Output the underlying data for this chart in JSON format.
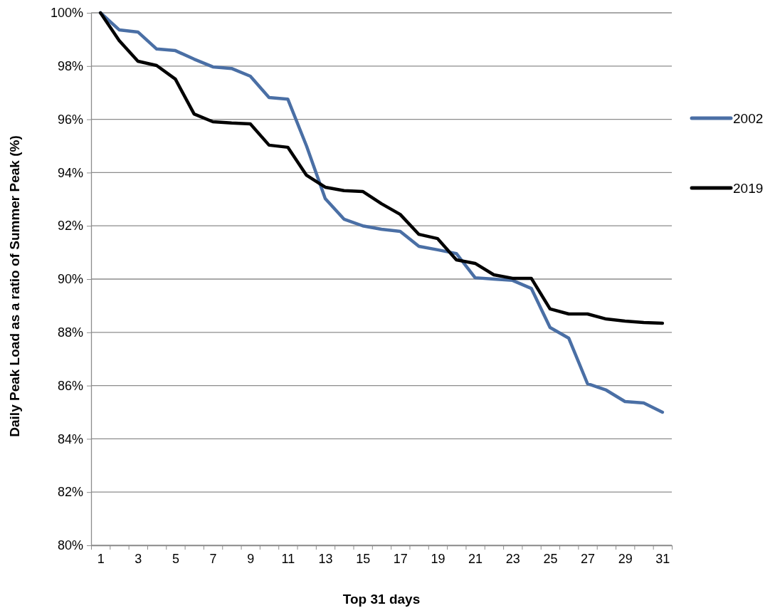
{
  "chart_data": {
    "type": "line",
    "xlabel": "Top 31 days",
    "ylabel": "Daily Peak Load as a ratio of Summer Peak (%)",
    "x": [
      1,
      2,
      3,
      4,
      5,
      6,
      7,
      8,
      9,
      10,
      11,
      12,
      13,
      14,
      15,
      16,
      17,
      18,
      19,
      20,
      21,
      22,
      23,
      24,
      25,
      26,
      27,
      28,
      29,
      30,
      31
    ],
    "xlim": [
      0.5,
      31.5
    ],
    "xticks": [
      1,
      3,
      5,
      7,
      9,
      11,
      13,
      15,
      17,
      19,
      21,
      23,
      25,
      27,
      29,
      31,
      {
        "value": 0.5,
        "label": null
      },
      {
        "value": 1.5,
        "label": null
      },
      {
        "value": 2.5,
        "label": null
      },
      {
        "value": 3.5,
        "label": null
      },
      {
        "value": 4.5,
        "label": null
      },
      {
        "value": 5.5,
        "label": null
      },
      {
        "value": 6.5,
        "label": null
      },
      {
        "value": 7.5,
        "label": null
      },
      {
        "value": 8.5,
        "label": null
      },
      {
        "value": 9.5,
        "label": null
      },
      {
        "value": 10.5,
        "label": null
      },
      {
        "value": 11.5,
        "label": null
      },
      {
        "value": 12.5,
        "label": null
      },
      {
        "value": 13.5,
        "label": null
      },
      {
        "value": 14.5,
        "label": null
      },
      {
        "value": 15.5,
        "label": null
      },
      {
        "value": 16.5,
        "label": null
      },
      {
        "value": 17.5,
        "label": null
      },
      {
        "value": 18.5,
        "label": null
      },
      {
        "value": 19.5,
        "label": null
      },
      {
        "value": 20.5,
        "label": null
      },
      {
        "value": 21.5,
        "label": null
      },
      {
        "value": 22.5,
        "label": null
      },
      {
        "value": 23.5,
        "label": null
      },
      {
        "value": 24.5,
        "label": null
      },
      {
        "value": 25.5,
        "label": null
      },
      {
        "value": 26.5,
        "label": null
      },
      {
        "value": 27.5,
        "label": null
      },
      {
        "value": 28.5,
        "label": null
      },
      {
        "value": 29.5,
        "label": null
      },
      {
        "value": 30.5,
        "label": null
      },
      {
        "value": 31.5,
        "label": null
      }
    ],
    "series": [
      {
        "name": "2002",
        "color": "#4a6fa5",
        "values": [
          100,
          99.36,
          99.28,
          98.64,
          98.58,
          98.26,
          97.97,
          97.91,
          97.62,
          96.82,
          96.76,
          95.0,
          93.02,
          92.25,
          92.0,
          91.87,
          91.79,
          91.23,
          91.1,
          90.96,
          90.05,
          90.0,
          89.95,
          89.65,
          88.18,
          87.78,
          86.07,
          85.83,
          85.4,
          85.35,
          85.0
        ]
      },
      {
        "name": "2019",
        "color": "#000000",
        "values": [
          100,
          98.96,
          98.18,
          98.02,
          97.51,
          96.2,
          95.91,
          95.86,
          95.83,
          95.03,
          94.95,
          93.9,
          93.45,
          93.32,
          93.29,
          92.83,
          92.43,
          91.68,
          91.52,
          90.72,
          90.59,
          90.16,
          90.03,
          90.03,
          88.88,
          88.69,
          88.69,
          88.5,
          88.42,
          88.37,
          88.34
        ]
      }
    ],
    "ylim": [
      80,
      100
    ],
    "yticks": [
      {
        "value": 80,
        "label": "80%"
      },
      {
        "value": 82,
        "label": "82%"
      },
      {
        "value": 84,
        "label": "84%"
      },
      {
        "value": 86,
        "label": "86%"
      },
      {
        "value": 88,
        "label": "88%"
      },
      {
        "value": 90,
        "label": "90%"
      },
      {
        "value": 92,
        "label": "92%"
      },
      {
        "value": 94,
        "label": "94%"
      },
      {
        "value": 96,
        "label": "96%"
      },
      {
        "value": 98,
        "label": "98%"
      },
      {
        "value": 100,
        "label": "100%"
      }
    ],
    "grid": "y",
    "legend": "right",
    "marker": "none",
    "line_style": "solid"
  }
}
